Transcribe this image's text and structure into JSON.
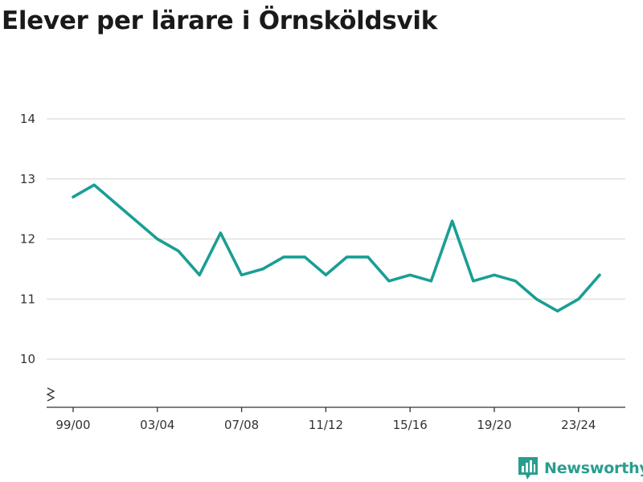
{
  "title": "Elever per lärare i Örnsköldsvik",
  "brand": {
    "name": "Newsworthy",
    "icon": "newsworthy-logo-icon",
    "color": "#2a9d8f"
  },
  "chart_data": {
    "type": "line",
    "title": "Elever per lärare i Örnsköldsvik",
    "xlabel": "",
    "ylabel": "",
    "x": [
      "99/00",
      "00/01",
      "01/02",
      "02/03",
      "03/04",
      "04/05",
      "05/06",
      "06/07",
      "07/08",
      "08/09",
      "09/10",
      "10/11",
      "11/12",
      "12/13",
      "13/14",
      "14/15",
      "15/16",
      "16/17",
      "17/18",
      "18/19",
      "19/20",
      "20/21",
      "21/22",
      "22/23",
      "23/24",
      "24/25"
    ],
    "series": [
      {
        "values": [
          12.7,
          12.9,
          12.6,
          12.3,
          12.0,
          11.8,
          11.4,
          12.1,
          11.4,
          11.5,
          11.7,
          11.7,
          11.4,
          11.7,
          11.7,
          11.3,
          11.4,
          11.3,
          12.3,
          11.3,
          11.4,
          11.3,
          11.0,
          10.8,
          11.0,
          11.4
        ],
        "color": "#1a9e94"
      }
    ],
    "x_tick_labels": [
      "99/00",
      "03/04",
      "07/08",
      "11/12",
      "15/16",
      "19/20",
      "23/24"
    ],
    "y_ticks": [
      10,
      11,
      12,
      13,
      14
    ],
    "ylim": [
      9.5,
      14
    ],
    "grid": true,
    "y_axis_break": true
  }
}
